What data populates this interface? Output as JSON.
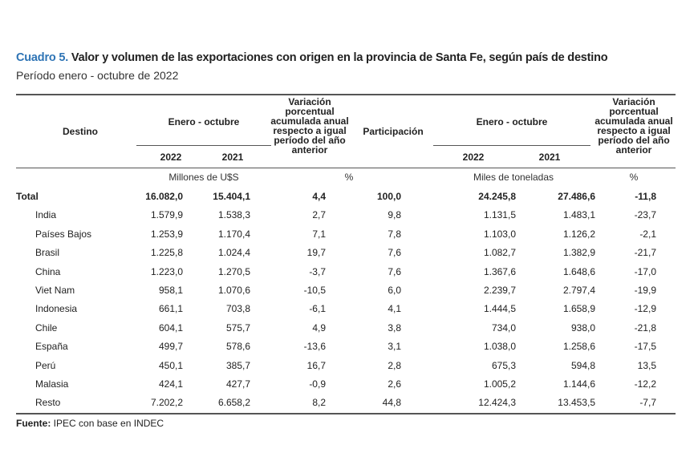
{
  "title": {
    "lead": "Cuadro 5.",
    "text": " Valor y volumen de las exportaciones con origen en la provincia de Santa Fe, según país de destino",
    "subtitle": "Período enero - octubre de 2022"
  },
  "header": {
    "destino": "Destino",
    "period1": "Enero - octubre",
    "year1a": "2022",
    "year1b": "2021",
    "variation1": "Variación porcentual acumulada anual respecto a igual período del año anterior",
    "participation": "Participación",
    "period2": "Enero - octubre",
    "year2a": "2022",
    "year2b": "2021",
    "variation2": "Variación porcentual acumulada anual respecto a igual período del año anterior"
  },
  "units": {
    "value": "Millones de U$S",
    "pct1": "%",
    "volume": "Miles de toneladas",
    "pct2": "%"
  },
  "rows": [
    {
      "destino": "Total",
      "v2022": "16.082,0",
      "v2021": "15.404,1",
      "var": "4,4",
      "part": "100,0",
      "t2022": "24.245,8",
      "t2021": "27.486,6",
      "tvar": "-11,8"
    },
    {
      "destino": "India",
      "v2022": "1.579,9",
      "v2021": "1.538,3",
      "var": "2,7",
      "part": "9,8",
      "t2022": "1.131,5",
      "t2021": "1.483,1",
      "tvar": "-23,7"
    },
    {
      "destino": "Países Bajos",
      "v2022": "1.253,9",
      "v2021": "1.170,4",
      "var": "7,1",
      "part": "7,8",
      "t2022": "1.103,0",
      "t2021": "1.126,2",
      "tvar": "-2,1"
    },
    {
      "destino": "Brasil",
      "v2022": "1.225,8",
      "v2021": "1.024,4",
      "var": "19,7",
      "part": "7,6",
      "t2022": "1.082,7",
      "t2021": "1.382,9",
      "tvar": "-21,7"
    },
    {
      "destino": "China",
      "v2022": "1.223,0",
      "v2021": "1.270,5",
      "var": "-3,7",
      "part": "7,6",
      "t2022": "1.367,6",
      "t2021": "1.648,6",
      "tvar": "-17,0"
    },
    {
      "destino": "Viet Nam",
      "v2022": "958,1",
      "v2021": "1.070,6",
      "var": "-10,5",
      "part": "6,0",
      "t2022": "2.239,7",
      "t2021": "2.797,4",
      "tvar": "-19,9"
    },
    {
      "destino": "Indonesia",
      "v2022": "661,1",
      "v2021": "703,8",
      "var": "-6,1",
      "part": "4,1",
      "t2022": "1.444,5",
      "t2021": "1.658,9",
      "tvar": "-12,9"
    },
    {
      "destino": "Chile",
      "v2022": "604,1",
      "v2021": "575,7",
      "var": "4,9",
      "part": "3,8",
      "t2022": "734,0",
      "t2021": "938,0",
      "tvar": "-21,8"
    },
    {
      "destino": "España",
      "v2022": "499,7",
      "v2021": "578,6",
      "var": "-13,6",
      "part": "3,1",
      "t2022": "1.038,0",
      "t2021": "1.258,6",
      "tvar": "-17,5"
    },
    {
      "destino": "Perú",
      "v2022": "450,1",
      "v2021": "385,7",
      "var": "16,7",
      "part": "2,8",
      "t2022": "675,3",
      "t2021": "594,8",
      "tvar": "13,5"
    },
    {
      "destino": "Malasia",
      "v2022": "424,1",
      "v2021": "427,7",
      "var": "-0,9",
      "part": "2,6",
      "t2022": "1.005,2",
      "t2021": "1.144,6",
      "tvar": "-12,2"
    },
    {
      "destino": "Resto",
      "v2022": "7.202,2",
      "v2021": "6.658,2",
      "var": "8,2",
      "part": "44,8",
      "t2022": "12.424,3",
      "t2021": "13.453,5",
      "tvar": "-7,7"
    }
  ],
  "source": {
    "label": "Fuente:",
    "text": " IPEC con base en INDEC"
  }
}
